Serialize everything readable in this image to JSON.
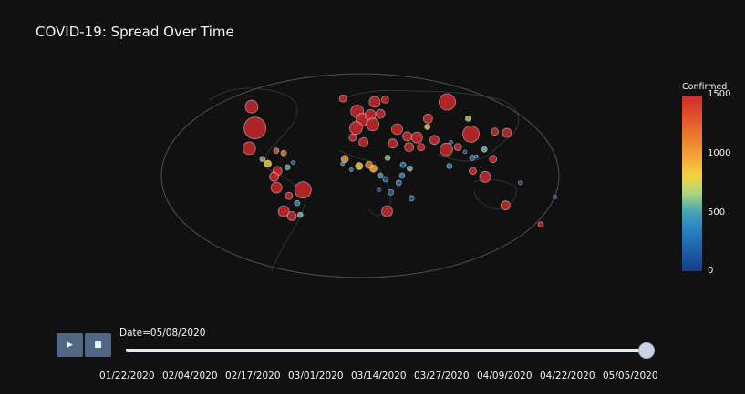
{
  "chart_data": {
    "type": "scatter",
    "title": "COVID-19: Spread Over Time",
    "colorbar": {
      "title": "Confirmed",
      "ticks": [
        0,
        500,
        1000,
        1500
      ],
      "range": [
        0,
        1500
      ]
    },
    "frame_label": "Date=05/08/2020",
    "slider_ticks": [
      "01/22/2020",
      "02/04/2020",
      "02/17/2020",
      "03/01/2020",
      "03/14/2020",
      "03/27/2020",
      "04/09/2020",
      "04/22/2020",
      "05/05/2020"
    ],
    "slider_value": 1.0,
    "points": [
      {
        "lon": -100,
        "lat": 40,
        "v": 1500,
        "r": 12
      },
      {
        "lon": -110,
        "lat": 58,
        "v": 1500,
        "r": 7
      },
      {
        "lon": -102,
        "lat": 23,
        "v": 1500,
        "r": 7
      },
      {
        "lon": -77,
        "lat": 21,
        "v": 1300,
        "r": 3
      },
      {
        "lon": -84,
        "lat": 10,
        "v": 900,
        "r": 4
      },
      {
        "lon": -75,
        "lat": 4,
        "v": 1500,
        "r": 5
      },
      {
        "lon": -66,
        "lat": 7,
        "v": 600,
        "r": 3
      },
      {
        "lon": -78,
        "lat": -1,
        "v": 1500,
        "r": 5
      },
      {
        "lon": -76,
        "lat": -10,
        "v": 1500,
        "r": 6
      },
      {
        "lon": -52,
        "lat": -12,
        "v": 1500,
        "r": 9
      },
      {
        "lon": -65,
        "lat": -17,
        "v": 1500,
        "r": 4
      },
      {
        "lon": -58,
        "lat": -23,
        "v": 400,
        "r": 3
      },
      {
        "lon": -71,
        "lat": -30,
        "v": 1500,
        "r": 6
      },
      {
        "lon": -64,
        "lat": -34,
        "v": 1500,
        "r": 5
      },
      {
        "lon": -56,
        "lat": -33,
        "v": 700,
        "r": 3
      },
      {
        "lon": -61,
        "lat": 11,
        "v": 200,
        "r": 2
      },
      {
        "lon": -89,
        "lat": 14,
        "v": 700,
        "r": 3
      },
      {
        "lon": -70,
        "lat": 19,
        "v": 1200,
        "r": 3
      },
      {
        "lon": -18,
        "lat": 65,
        "v": 1500,
        "r": 4
      },
      {
        "lon": -3,
        "lat": 54,
        "v": 1500,
        "r": 7
      },
      {
        "lon": 2,
        "lat": 47,
        "v": 1500,
        "r": 7
      },
      {
        "lon": 10,
        "lat": 51,
        "v": 1500,
        "r": 6
      },
      {
        "lon": -4,
        "lat": 40,
        "v": 1500,
        "r": 7
      },
      {
        "lon": 12,
        "lat": 43,
        "v": 1500,
        "r": 7
      },
      {
        "lon": 20,
        "lat": 52,
        "v": 1500,
        "r": 5
      },
      {
        "lon": 15,
        "lat": 62,
        "v": 1500,
        "r": 6
      },
      {
        "lon": 26,
        "lat": 64,
        "v": 1500,
        "r": 4
      },
      {
        "lon": 90,
        "lat": 62,
        "v": 1500,
        "r": 9
      },
      {
        "lon": 35,
        "lat": 39,
        "v": 1500,
        "r": 6
      },
      {
        "lon": 44,
        "lat": 33,
        "v": 1500,
        "r": 5
      },
      {
        "lon": 53,
        "lat": 32,
        "v": 1500,
        "r": 6
      },
      {
        "lon": 45,
        "lat": 24,
        "v": 1500,
        "r": 5
      },
      {
        "lon": 69,
        "lat": 30,
        "v": 1500,
        "r": 5
      },
      {
        "lon": 79,
        "lat": 22,
        "v": 1500,
        "r": 7
      },
      {
        "lon": 90,
        "lat": 24,
        "v": 1500,
        "r": 4
      },
      {
        "lon": 104,
        "lat": 35,
        "v": 1500,
        "r": 9
      },
      {
        "lon": 127,
        "lat": 37,
        "v": 1500,
        "r": 4
      },
      {
        "lon": 138,
        "lat": 36,
        "v": 1500,
        "r": 5
      },
      {
        "lon": 102,
        "lat": 15,
        "v": 300,
        "r": 3
      },
      {
        "lon": 121,
        "lat": 14,
        "v": 1500,
        "r": 4
      },
      {
        "lon": 113,
        "lat": -1,
        "v": 1500,
        "r": 6
      },
      {
        "lon": 102,
        "lat": 4,
        "v": 1500,
        "r": 4
      },
      {
        "lon": 134,
        "lat": -25,
        "v": 1500,
        "r": 5
      },
      {
        "lon": 172,
        "lat": -41,
        "v": 1500,
        "r": 3
      },
      {
        "lon": 105,
        "lat": 48,
        "v": 800,
        "r": 3
      },
      {
        "lon": 66,
        "lat": 48,
        "v": 1500,
        "r": 5
      },
      {
        "lon": 30,
        "lat": 27,
        "v": 1500,
        "r": 5
      },
      {
        "lon": 3,
        "lat": 28,
        "v": 1500,
        "r": 5
      },
      {
        "lon": -7,
        "lat": 32,
        "v": 1500,
        "r": 4
      },
      {
        "lon": -14,
        "lat": 14,
        "v": 1100,
        "r": 4
      },
      {
        "lon": -1,
        "lat": 8,
        "v": 900,
        "r": 4
      },
      {
        "lon": 8,
        "lat": 9,
        "v": 1200,
        "r": 4
      },
      {
        "lon": 12,
        "lat": 6,
        "v": 1000,
        "r": 4
      },
      {
        "lon": 25,
        "lat": 15,
        "v": 700,
        "r": 3
      },
      {
        "lon": 39,
        "lat": 9,
        "v": 300,
        "r": 3
      },
      {
        "lon": 45,
        "lat": 6,
        "v": 700,
        "r": 3
      },
      {
        "lon": 38,
        "lat": 0,
        "v": 400,
        "r": 3
      },
      {
        "lon": 23,
        "lat": -3,
        "v": 200,
        "r": 3
      },
      {
        "lon": 35,
        "lat": -6,
        "v": 300,
        "r": 3
      },
      {
        "lon": 17,
        "lat": -12,
        "v": 100,
        "r": 2
      },
      {
        "lon": 28,
        "lat": -14,
        "v": 200,
        "r": 3
      },
      {
        "lon": 25,
        "lat": -30,
        "v": 1500,
        "r": 6
      },
      {
        "lon": 47,
        "lat": -19,
        "v": 200,
        "r": 3
      },
      {
        "lon": -8,
        "lat": 5,
        "v": 300,
        "r": 2
      },
      {
        "lon": -16,
        "lat": 10,
        "v": 400,
        "r": 2
      },
      {
        "lon": 18,
        "lat": 0,
        "v": 500,
        "r": 3
      },
      {
        "lon": 56,
        "lat": 24,
        "v": 1500,
        "r": 4
      },
      {
        "lon": 64,
        "lat": 41,
        "v": 900,
        "r": 3
      },
      {
        "lon": 84,
        "lat": 28,
        "v": 200,
        "r": 2
      },
      {
        "lon": 81,
        "lat": 8,
        "v": 400,
        "r": 3
      },
      {
        "lon": 96,
        "lat": 20,
        "v": 100,
        "r": 2
      },
      {
        "lon": 106,
        "lat": 16,
        "v": 200,
        "r": 2
      },
      {
        "lon": 114,
        "lat": 22,
        "v": 700,
        "r": 3
      },
      {
        "lon": 145,
        "lat": -6,
        "v": 50,
        "r": 2
      },
      {
        "lon": 178,
        "lat": -18,
        "v": 100,
        "r": 2
      }
    ]
  }
}
